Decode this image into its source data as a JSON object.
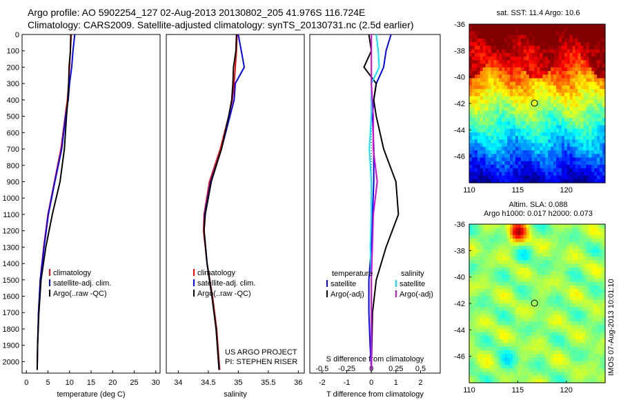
{
  "header": {
    "title_line1": "Argo profile: AO 5902254_127 02-Aug-2013 20130802_205 41.976S 116.724E",
    "title_line2": "Climatology: CARS2009. Satellite-adjusted climatology: synTS_20130731.nc (2.5d earlier)"
  },
  "stamp": "IMOS 07-Aug-2013 10:01:10",
  "colors": {
    "climatology": "#ff0000",
    "satellite": "#0000ff",
    "argo": "#000000",
    "satellite_s": "#00e5ff",
    "argo_s": "#dd00dd"
  },
  "chart_data": [
    {
      "type": "line",
      "xlabel": "temperature (deg C)",
      "xlim": [
        -1,
        31
      ],
      "xticks": [
        0,
        5,
        10,
        15,
        20,
        25,
        30
      ],
      "yticks": [
        0,
        100,
        200,
        300,
        400,
        500,
        600,
        700,
        800,
        900,
        1000,
        1100,
        1200,
        1300,
        1400,
        1500,
        1600,
        1700,
        1800,
        1900,
        2000
      ],
      "ylim": [
        0,
        2070
      ],
      "legend": [
        "climatology",
        "satellite-adj. clim.",
        "Argo(..raw -QC)"
      ],
      "series": [
        {
          "name": "climatology",
          "color": "red",
          "x": [
            10.4,
            10.2,
            10.0,
            9.8,
            9.5,
            9.0,
            8.0,
            6.5,
            5.0,
            4.0,
            3.2,
            2.8,
            2.6,
            2.5
          ],
          "y": [
            0,
            100,
            200,
            300,
            400,
            500,
            700,
            900,
            1100,
            1300,
            1500,
            1700,
            1900,
            2050
          ]
        },
        {
          "name": "satellite-adj. clim.",
          "color": "blue",
          "x": [
            11.2,
            10.8,
            10.5,
            10.0,
            9.7,
            9.1,
            8.2,
            6.6,
            5.1,
            4.1,
            3.2,
            2.8,
            2.6,
            2.5
          ],
          "y": [
            0,
            100,
            200,
            300,
            400,
            500,
            700,
            900,
            1100,
            1300,
            1500,
            1700,
            1900,
            2050
          ]
        },
        {
          "name": "Argo(..raw -QC)",
          "color": "black",
          "x": [
            10.3,
            10.2,
            9.9,
            9.8,
            9.6,
            9.3,
            8.8,
            7.8,
            6.0,
            4.5,
            3.4,
            2.9,
            2.6,
            2.5
          ],
          "y": [
            0,
            100,
            200,
            300,
            400,
            500,
            700,
            900,
            1100,
            1300,
            1500,
            1700,
            1900,
            2050
          ]
        }
      ]
    },
    {
      "type": "line",
      "xlabel": "salinity",
      "xlim": [
        33.8,
        36.1
      ],
      "xticks": [
        34,
        34.5,
        35,
        35.5,
        36
      ],
      "xticklabels": [
        "34",
        "34.5",
        "35",
        "35.5",
        "36"
      ],
      "ylim": [
        0,
        2070
      ],
      "legend": [
        "climatology",
        "satellite-adj. clim.",
        "Argo(..raw -QC)"
      ],
      "annotation": [
        "US ARGO PROJECT",
        "PI: STEPHEN RISER"
      ],
      "series": [
        {
          "name": "climatology",
          "color": "red",
          "x": [
            34.98,
            34.97,
            34.95,
            34.93,
            34.9,
            34.84,
            34.7,
            34.52,
            34.43,
            34.42,
            34.48,
            34.57,
            34.64,
            34.69
          ],
          "y": [
            0,
            100,
            200,
            300,
            400,
            500,
            700,
            900,
            1100,
            1200,
            1400,
            1600,
            1800,
            2050
          ]
        },
        {
          "name": "satellite-adj. clim.",
          "color": "blue",
          "x": [
            35.0,
            35.05,
            35.1,
            34.95,
            34.93,
            34.86,
            34.72,
            34.54,
            34.44,
            34.43,
            34.48,
            34.56,
            34.63,
            34.68
          ],
          "y": [
            0,
            100,
            200,
            300,
            400,
            500,
            700,
            900,
            1100,
            1200,
            1400,
            1600,
            1800,
            2050
          ]
        },
        {
          "name": "Argo(..raw -QC)",
          "color": "black",
          "x": [
            34.97,
            34.96,
            34.92,
            34.91,
            34.89,
            34.84,
            34.72,
            34.55,
            34.45,
            34.43,
            34.48,
            34.56,
            34.63,
            34.68
          ],
          "y": [
            0,
            100,
            200,
            300,
            400,
            500,
            700,
            900,
            1100,
            1200,
            1400,
            1600,
            1800,
            2050
          ]
        }
      ]
    },
    {
      "type": "line",
      "xlabel": "T difference from climatology",
      "xlabel_top": "S difference from climatology",
      "xlim": [
        -2.5,
        2.8
      ],
      "xticks": [
        -2,
        -1,
        0,
        1,
        2
      ],
      "s_ticks": [
        -0.5,
        -0.25,
        0,
        0.25,
        0.5
      ],
      "s_ticklabels": [
        "-0.5",
        "-0.25",
        "0",
        "0.25",
        "0.5"
      ],
      "ylim": [
        0,
        2070
      ],
      "legend_temperature_title": "temperature",
      "legend_salinity_title": "salinity",
      "legend": [
        "satellite",
        "Argo(-adj)",
        "satellite",
        "Argo(-adj)"
      ],
      "series": [
        {
          "name": "satellite",
          "group": "temperature",
          "color": "blue",
          "x": [
            0.8,
            0.6,
            0.5,
            0.2,
            0.1,
            0.05,
            0.1,
            0.1,
            0.05,
            0.0,
            -0.1,
            -0.1,
            -0.05,
            0
          ],
          "y": [
            0,
            100,
            200,
            300,
            400,
            500,
            700,
            900,
            1100,
            1300,
            1500,
            1700,
            1900,
            2050
          ]
        },
        {
          "name": "Argo(-adj)",
          "group": "temperature",
          "color": "black",
          "x": [
            -0.1,
            0.0,
            -0.3,
            0.2,
            0.1,
            0.2,
            0.5,
            1.0,
            1.1,
            0.6,
            0.2,
            0.05,
            0.02,
            0
          ],
          "y": [
            0,
            100,
            200,
            300,
            400,
            500,
            700,
            900,
            1100,
            1300,
            1500,
            1700,
            1900,
            2050
          ]
        },
        {
          "name": "satellite",
          "group": "salinity",
          "color": "cyan",
          "x": [
            0.05,
            0.07,
            0.08,
            0.0,
            0.0,
            0.0,
            -0.02,
            0.0,
            0.0,
            -0.01,
            0.0,
            0.0,
            0.0,
            0
          ],
          "y": [
            0,
            100,
            200,
            300,
            400,
            500,
            700,
            900,
            1100,
            1300,
            1500,
            1700,
            1900,
            2050
          ]
        },
        {
          "name": "Argo(-adj)",
          "group": "salinity",
          "color": "magenta",
          "x": [
            0.0,
            0.0,
            0.0,
            0.0,
            0.01,
            0.02,
            0.02,
            0.06,
            0.02,
            0.01,
            0.0,
            0.0,
            0.0,
            0
          ],
          "y": [
            0,
            100,
            200,
            300,
            400,
            500,
            700,
            900,
            1100,
            1300,
            1500,
            1700,
            1900,
            2050
          ]
        }
      ]
    },
    {
      "type": "heatmap",
      "title": "sat. SST: 11.4 Argo: 10.6",
      "xlim": [
        110,
        124
      ],
      "ylim": [
        -48,
        -36
      ],
      "xticks": [
        110,
        115,
        120
      ],
      "yticks": [
        -36,
        -38,
        -40,
        -42,
        -44,
        -46
      ],
      "argo_position": [
        116.724,
        -41.976
      ],
      "colormap": "jet",
      "pattern": "warm (red) north of about 39S, yellow-orange to 41S, green to 44S, cyan and blue to the south"
    },
    {
      "type": "heatmap",
      "title_line1": "Altim. SLA: 0.088",
      "title_line2": "Argo h1000: 0.017 h2000: 0.073",
      "xlim": [
        110,
        124
      ],
      "ylim": [
        -48,
        -36
      ],
      "xticks": [
        110,
        115,
        120
      ],
      "yticks": [
        -36,
        -38,
        -40,
        -42,
        -44,
        -46
      ],
      "argo_position": [
        116.724,
        -41.976
      ],
      "colormap": "jet",
      "pattern": "mostly green with scattered cyan and yellow eddies, orange spot near 115E 36.5S"
    }
  ]
}
